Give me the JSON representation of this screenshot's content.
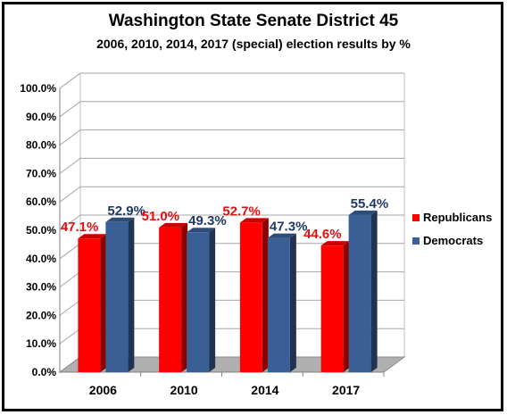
{
  "chart_data": {
    "type": "bar",
    "title": "Washington State Senate District 45",
    "subtitle": "2006, 2010, 2014, 2017 (special) election results by %",
    "categories": [
      "2006",
      "2010",
      "2014",
      "2017"
    ],
    "series": [
      {
        "name": "Republicans",
        "color": "#ff0000",
        "label_color": "#e31010",
        "values": [
          47.1,
          51.0,
          52.7,
          44.6
        ],
        "labels": [
          "47.1%",
          "51.0%",
          "52.7%",
          "44.6%"
        ]
      },
      {
        "name": "Democrats",
        "color": "#3a5f94",
        "label_color": "#1f3864",
        "values": [
          52.9,
          49.3,
          47.3,
          55.4
        ],
        "labels": [
          "52.9%",
          "49.3%",
          "47.3%",
          "55.4%"
        ]
      }
    ],
    "ylim": [
      0,
      100
    ],
    "yticks": [
      0,
      10,
      20,
      30,
      40,
      50,
      60,
      70,
      80,
      90,
      100
    ],
    "ytick_labels": [
      "0.0%",
      "10.0%",
      "20.0%",
      "30.0%",
      "40.0%",
      "50.0%",
      "60.0%",
      "70.0%",
      "80.0%",
      "90.0%",
      "100.0%"
    ],
    "xlabel": "",
    "ylabel": "",
    "grid": true,
    "legend_position": "right",
    "style": "3d-clustered-column"
  }
}
